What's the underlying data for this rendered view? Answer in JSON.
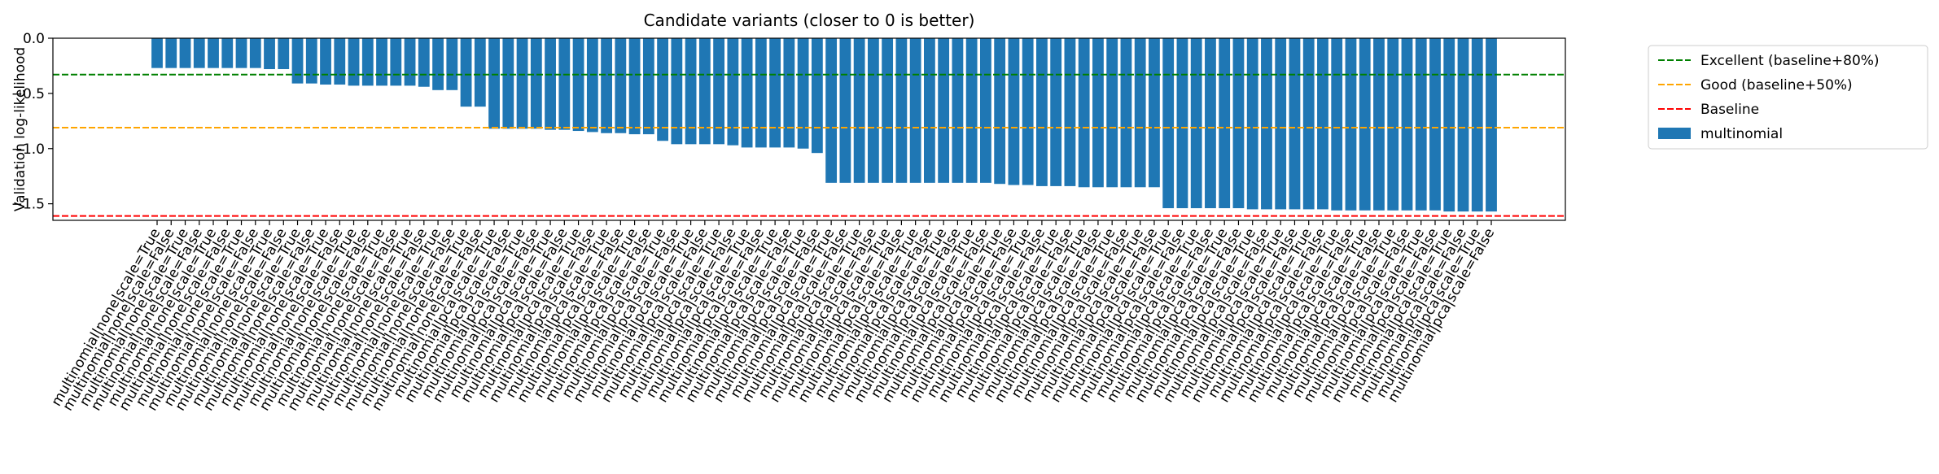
{
  "chart_data": {
    "type": "bar",
    "title": "Candidate variants (closer to 0 is better)",
    "y_label": "Validation log-likelihood",
    "categories": [
      "multinomial|none|scale=True",
      "multinomial|none|scale=False",
      "multinomial|none|scale=True",
      "multinomial|none|scale=False",
      "multinomial|none|scale=True",
      "multinomial|none|scale=False",
      "multinomial|none|scale=True",
      "multinomial|none|scale=False",
      "multinomial|none|scale=True",
      "multinomial|none|scale=False",
      "multinomial|none|scale=True",
      "multinomial|none|scale=False",
      "multinomial|none|scale=True",
      "multinomial|none|scale=False",
      "multinomial|none|scale=True",
      "multinomial|none|scale=False",
      "multinomial|none|scale=True",
      "multinomial|none|scale=False",
      "multinomial|none|scale=True",
      "multinomial|none|scale=False",
      "multinomial|none|scale=True",
      "multinomial|none|scale=False",
      "multinomial|none|scale=True",
      "multinomial|none|scale=False",
      "multinomial|pca|scale=True",
      "multinomial|pca|scale=False",
      "multinomial|pca|scale=True",
      "multinomial|pca|scale=False",
      "multinomial|pca|scale=True",
      "multinomial|pca|scale=False",
      "multinomial|pca|scale=True",
      "multinomial|pca|scale=False",
      "multinomial|pca|scale=True",
      "multinomial|pca|scale=False",
      "multinomial|pca|scale=True",
      "multinomial|pca|scale=False",
      "multinomial|pca|scale=True",
      "multinomial|pca|scale=False",
      "multinomial|pca|scale=True",
      "multinomial|pca|scale=False",
      "multinomial|pca|scale=True",
      "multinomial|pca|scale=False",
      "multinomial|pca|scale=True",
      "multinomial|pca|scale=False",
      "multinomial|pca|scale=True",
      "multinomial|pca|scale=False",
      "multinomial|pca|scale=True",
      "multinomial|pca|scale=False",
      "multinomial|pca|scale=True",
      "multinomial|pca|scale=False",
      "multinomial|pca|scale=True",
      "multinomial|pca|scale=False",
      "multinomial|pca|scale=True",
      "multinomial|pca|scale=False",
      "multinomial|pca|scale=True",
      "multinomial|pca|scale=False",
      "multinomial|pca|scale=True",
      "multinomial|pca|scale=False",
      "multinomial|pca|scale=True",
      "multinomial|pca|scale=False",
      "multinomial|pca|scale=True",
      "multinomial|pca|scale=False",
      "multinomial|pca|scale=True",
      "multinomial|pca|scale=False",
      "multinomial|pca|scale=True",
      "multinomial|pca|scale=False",
      "multinomial|pca|scale=True",
      "multinomial|pca|scale=False",
      "multinomial|pca|scale=True",
      "multinomial|pca|scale=False",
      "multinomial|pca|scale=True",
      "multinomial|pca|scale=False",
      "multinomial|pca|scale=True",
      "multinomial|pca|scale=False",
      "multinomial|pca|scale=True",
      "multinomial|pca|scale=False",
      "multinomial|pca|scale=True",
      "multinomial|pca|scale=False",
      "multinomial|pca|scale=True",
      "multinomial|pca|scale=False",
      "multinomial|pca|scale=True",
      "multinomial|pca|scale=False",
      "multinomial|pca|scale=True",
      "multinomial|pca|scale=False",
      "multinomial|pca|scale=True",
      "multinomial|pca|scale=False",
      "multinomial|pca|scale=True",
      "multinomial|pca|scale=False",
      "multinomial|pca|scale=True",
      "multinomial|pca|scale=False",
      "multinomial|pca|scale=True",
      "multinomial|pca|scale=False",
      "multinomial|pca|scale=True",
      "multinomial|pca|scale=False",
      "multinomial|pca|scale=True",
      "multinomial|pca|scale=False"
    ],
    "series": [
      {
        "name": "multinomial",
        "color": "#1f77b4",
        "values": [
          -0.27,
          -0.27,
          -0.27,
          -0.27,
          -0.27,
          -0.27,
          -0.27,
          -0.27,
          -0.28,
          -0.28,
          -0.41,
          -0.41,
          -0.42,
          -0.42,
          -0.43,
          -0.43,
          -0.43,
          -0.43,
          -0.43,
          -0.44,
          -0.47,
          -0.47,
          -0.62,
          -0.62,
          -0.82,
          -0.82,
          -0.82,
          -0.82,
          -0.83,
          -0.83,
          -0.84,
          -0.85,
          -0.86,
          -0.86,
          -0.87,
          -0.87,
          -0.93,
          -0.96,
          -0.96,
          -0.96,
          -0.96,
          -0.97,
          -0.99,
          -0.99,
          -0.99,
          -0.99,
          -1.0,
          -1.04,
          -1.31,
          -1.31,
          -1.31,
          -1.31,
          -1.31,
          -1.31,
          -1.31,
          -1.31,
          -1.31,
          -1.31,
          -1.31,
          -1.31,
          -1.32,
          -1.33,
          -1.33,
          -1.34,
          -1.34,
          -1.34,
          -1.35,
          -1.35,
          -1.35,
          -1.35,
          -1.35,
          -1.35,
          -1.54,
          -1.54,
          -1.54,
          -1.54,
          -1.54,
          -1.54,
          -1.55,
          -1.55,
          -1.55,
          -1.55,
          -1.55,
          -1.55,
          -1.56,
          -1.56,
          -1.56,
          -1.56,
          -1.56,
          -1.56,
          -1.56,
          -1.56,
          -1.57,
          -1.57,
          -1.57,
          -1.57
        ]
      }
    ],
    "reference_lines": [
      {
        "name": "Excellent (baseline+80%)",
        "value": -0.33,
        "color": "#008000"
      },
      {
        "name": "Good (baseline+50%)",
        "value": -0.81,
        "color": "#ffa500"
      },
      {
        "name": "Baseline",
        "value": -1.61,
        "color": "#ff0000"
      }
    ],
    "ylim": [
      -1.65,
      0
    ],
    "yticks": [
      {
        "value": 0,
        "label": "0.0"
      },
      {
        "value": -0.5,
        "label": "−0.5"
      },
      {
        "value": -1.0,
        "label": "−1.0"
      },
      {
        "value": -1.5,
        "label": "−1.5"
      }
    ],
    "legend": "outside-upper-right"
  }
}
